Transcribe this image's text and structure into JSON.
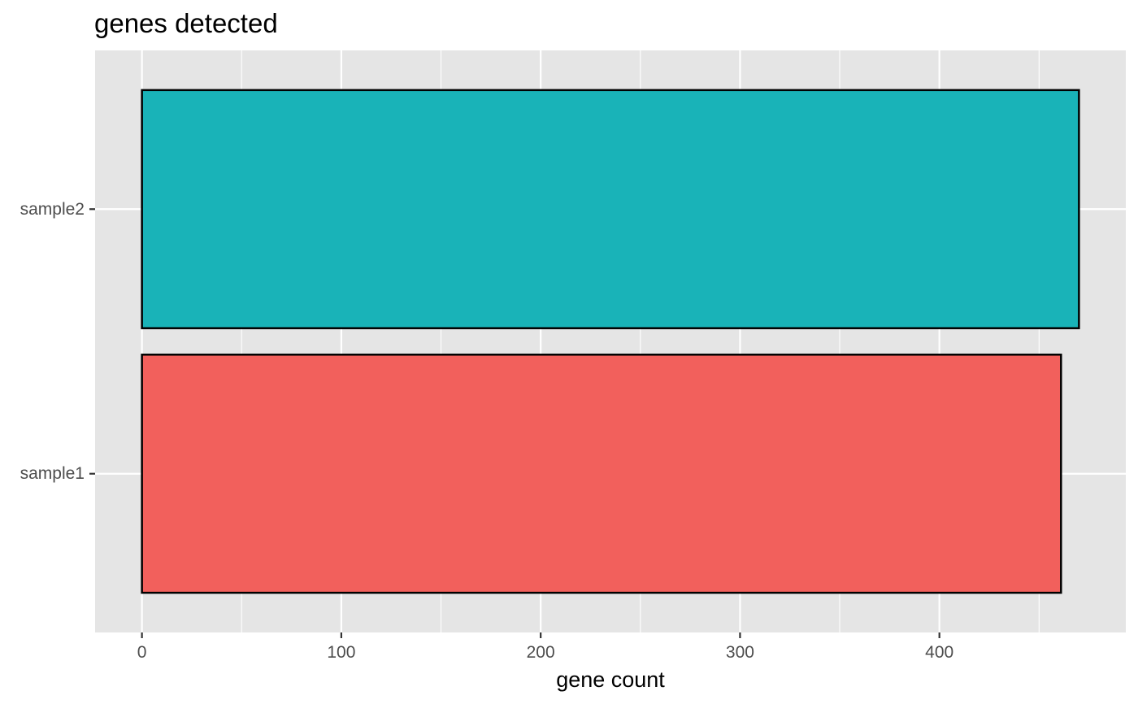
{
  "chart_data": {
    "type": "bar",
    "orientation": "horizontal",
    "title": "genes detected",
    "xlabel": "gene count",
    "ylabel": "",
    "categories": [
      "sample1",
      "sample2"
    ],
    "values": [
      461,
      470
    ],
    "colors": [
      "#F2605C",
      "#19B3B8"
    ],
    "bar_outline_color": "#000000",
    "panel_background": "#E5E5E5",
    "grid_color": "#FFFFFF",
    "grid": true,
    "legend": "none",
    "xlim": [
      -23.5,
      493.5
    ],
    "x_ticks": [
      0,
      100,
      200,
      300,
      400
    ],
    "x_tick_labels": [
      "0",
      "100",
      "200",
      "300",
      "400"
    ],
    "x_minor_ticks": [
      50,
      150,
      250,
      350,
      450
    ]
  }
}
